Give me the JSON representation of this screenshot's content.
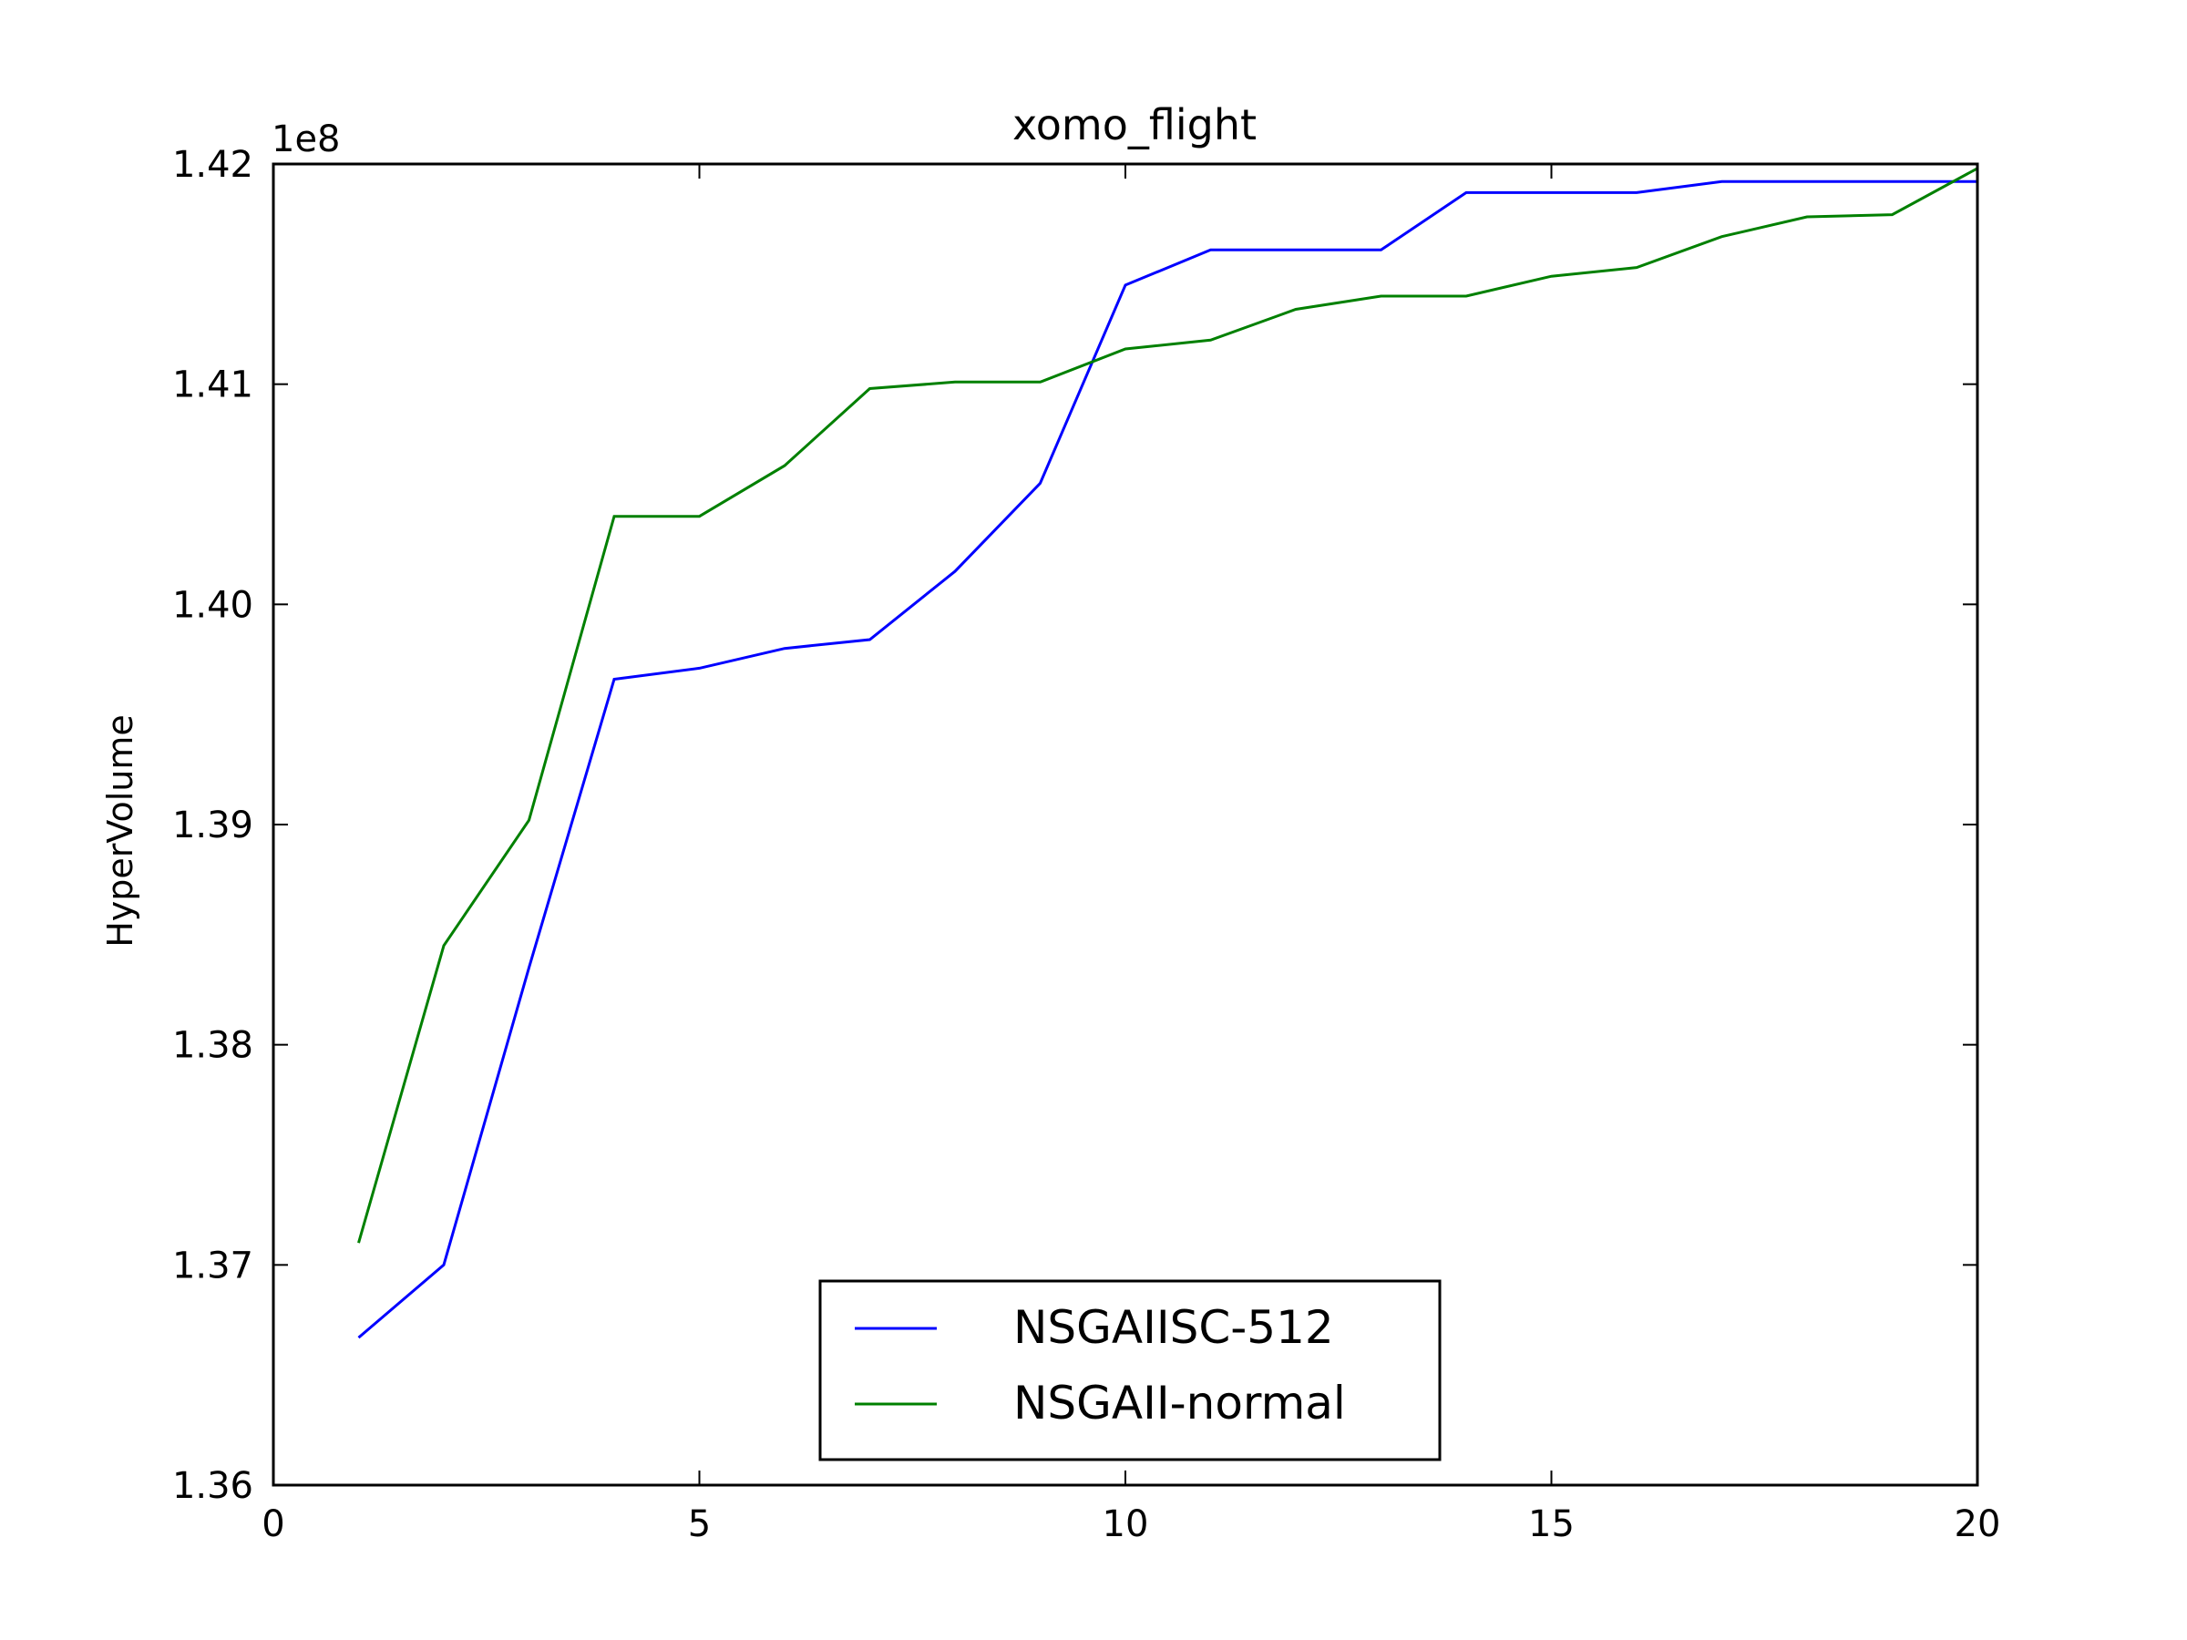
{
  "chart_data": {
    "type": "line",
    "title": "xomo_flight",
    "xlabel": "",
    "ylabel": "HyperVolume",
    "y_offset_label": "1e8",
    "xlim": [
      0,
      20
    ],
    "ylim": [
      1.36,
      1.42
    ],
    "x_ticks": [
      0,
      5,
      10,
      15,
      20
    ],
    "x_tick_labels": [
      "0",
      "5",
      "10",
      "15",
      "20"
    ],
    "y_ticks": [
      1.36,
      1.37,
      1.38,
      1.39,
      1.4,
      1.41,
      1.42
    ],
    "y_tick_labels": [
      "1.36",
      "1.37",
      "1.38",
      "1.39",
      "1.40",
      "1.41",
      "1.42"
    ],
    "grid": false,
    "legend_position": "lower-center",
    "series": [
      {
        "name": "NSGAIISC-512",
        "color": "#0000ff",
        "x": [
          1,
          2,
          3,
          4,
          5,
          6,
          7,
          8,
          9,
          10,
          11,
          12,
          13,
          14,
          15,
          16,
          17,
          18,
          19,
          20
        ],
        "y": [
          1.3667,
          1.37,
          1.3835,
          1.3966,
          1.3971,
          1.398,
          1.3984,
          1.4015,
          1.4055,
          1.4145,
          1.4161,
          1.4161,
          1.4161,
          1.4187,
          1.4187,
          1.4187,
          1.4192,
          1.4192,
          1.4192,
          1.4192
        ]
      },
      {
        "name": "NSGAII-normal",
        "color": "#008000",
        "x": [
          1,
          2,
          3,
          4,
          5,
          6,
          7,
          8,
          9,
          10,
          11,
          12,
          13,
          14,
          15,
          16,
          17,
          18,
          19,
          20
        ],
        "y": [
          1.371,
          1.3845,
          1.3902,
          1.404,
          1.404,
          1.4063,
          1.4098,
          1.4101,
          1.4101,
          1.4116,
          1.412,
          1.4134,
          1.414,
          1.414,
          1.4149,
          1.4153,
          1.4167,
          1.4176,
          1.4177,
          1.4198
        ]
      }
    ]
  }
}
